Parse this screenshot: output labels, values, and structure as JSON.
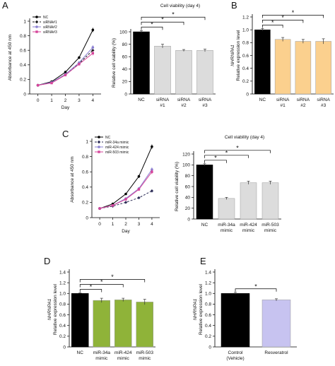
{
  "panels": [
    {
      "id": "A-line",
      "letter": "A",
      "type": "line",
      "xlabel": "Day",
      "ylabel": "Absorbance at 450 nm",
      "x": [
        0,
        1,
        2,
        3,
        4
      ],
      "xlim": [
        -0.6,
        4.6
      ],
      "ylim": [
        0,
        1.0
      ],
      "yticks": [
        0,
        0.2,
        0.4,
        0.6,
        0.8,
        1.0
      ],
      "ytick_labels": [
        "0",
        "0.2",
        "0.4",
        "0.6",
        "0.8",
        "1"
      ],
      "legend_position": "top-left",
      "series": [
        {
          "name": "NC",
          "color": "#000000",
          "dash": "",
          "marker": "circle",
          "values": [
            0.12,
            0.17,
            0.3,
            0.5,
            0.88
          ],
          "errors": [
            0.01,
            0.01,
            0.02,
            0.02,
            0.03
          ]
        },
        {
          "name": "siRNA#1",
          "color": "#1a1a1a",
          "dash": "3,2",
          "marker": "diamond",
          "values": [
            0.12,
            0.16,
            0.27,
            0.42,
            0.6
          ],
          "errors": [
            0.01,
            0.01,
            0.01,
            0.02,
            0.03
          ]
        },
        {
          "name": "siRNA#2",
          "color": "#8a7fd1",
          "dash": "",
          "marker": "circle",
          "values": [
            0.12,
            0.16,
            0.27,
            0.43,
            0.64
          ],
          "errors": [
            0.01,
            0.01,
            0.01,
            0.02,
            0.03
          ]
        },
        {
          "name": "siRNA#3",
          "color": "#d6449a",
          "dash": "",
          "marker": "square",
          "values": [
            0.12,
            0.15,
            0.26,
            0.41,
            0.56
          ],
          "errors": [
            0.01,
            0.01,
            0.01,
            0.02,
            0.03
          ]
        }
      ]
    },
    {
      "id": "A-bar",
      "letter": "",
      "type": "bar",
      "title": "Cell viability (day 4)",
      "ylabel": "Relative cell viability (%)",
      "ylim": [
        0,
        100
      ],
      "yticks": [
        0,
        20,
        40,
        60,
        80,
        100
      ],
      "ytick_labels": [
        "0",
        "20",
        "40",
        "60",
        "80",
        "100"
      ],
      "categories": [
        [
          "NC"
        ],
        [
          "siRNA",
          "#1"
        ],
        [
          "siRNA",
          "#2"
        ],
        [
          "siRNA",
          "#3"
        ]
      ],
      "values": [
        100,
        77,
        70,
        70
      ],
      "errors": [
        2,
        3,
        1.5,
        2
      ],
      "colors": [
        "#000000",
        "#dcdcdc",
        "#dcdcdc",
        "#dcdcdc"
      ],
      "brackets": [
        {
          "from": 0,
          "to": 1,
          "label": "*"
        },
        {
          "from": 0,
          "to": 2,
          "label": "*"
        },
        {
          "from": 0,
          "to": 3,
          "label": "*"
        }
      ]
    },
    {
      "id": "B-bar",
      "letter": "B",
      "type": "bar",
      "title": "",
      "ylabel": "Relative expression level",
      "ylabel_italic": "NHRNPA1",
      "ylim": [
        0,
        1.2
      ],
      "yticks": [
        0,
        0.2,
        0.4,
        0.6,
        0.8,
        1.0,
        1.2
      ],
      "ytick_labels": [
        "0",
        "0.2",
        "0.4",
        "0.6",
        "0.8",
        "1.0",
        "1.2"
      ],
      "categories": [
        [
          "NC"
        ],
        [
          "siRNA",
          "#1"
        ],
        [
          "siRNA",
          "#2"
        ],
        [
          "siRNA",
          "#3"
        ]
      ],
      "values": [
        1.0,
        0.85,
        0.82,
        0.82
      ],
      "errors": [
        0.02,
        0.03,
        0.03,
        0.04
      ],
      "colors": [
        "#000000",
        "#fbd08e",
        "#fbd08e",
        "#fbd08e"
      ],
      "brackets": [
        {
          "from": 0,
          "to": 1,
          "label": "*"
        },
        {
          "from": 0,
          "to": 2,
          "label": "*"
        },
        {
          "from": 0,
          "to": 3,
          "label": "*"
        }
      ]
    },
    {
      "id": "C-line",
      "letter": "C",
      "type": "line",
      "xlabel": "Day",
      "ylabel": "Absorbance at 450 nm",
      "x": [
        0,
        1,
        2,
        3,
        4
      ],
      "xlim": [
        -0.6,
        4.6
      ],
      "ylim": [
        0,
        1.0
      ],
      "yticks": [
        0,
        0.2,
        0.4,
        0.6,
        0.8,
        1.0
      ],
      "ytick_labels": [
        "0",
        "0.2",
        "0.4",
        "0.6",
        "0.8",
        "1"
      ],
      "legend_position": "top-left",
      "series": [
        {
          "name": "NC",
          "color": "#000000",
          "dash": "",
          "marker": "circle",
          "values": [
            0.12,
            0.18,
            0.31,
            0.54,
            0.93
          ],
          "errors": [
            0.01,
            0.01,
            0.01,
            0.02,
            0.03
          ]
        },
        {
          "name": "miR-34a mimic",
          "color": "#2a2a55",
          "dash": "3,2",
          "marker": "diamond",
          "values": [
            0.12,
            0.15,
            0.2,
            0.26,
            0.35
          ],
          "errors": [
            0.01,
            0.01,
            0.01,
            0.01,
            0.02
          ]
        },
        {
          "name": "miR-424 mimic",
          "color": "#8a7fd1",
          "dash": "",
          "marker": "circle",
          "values": [
            0.12,
            0.16,
            0.25,
            0.38,
            0.63
          ],
          "errors": [
            0.01,
            0.01,
            0.01,
            0.02,
            0.03
          ]
        },
        {
          "name": "miR-503 mimic",
          "color": "#d6449a",
          "dash": "",
          "marker": "square",
          "values": [
            0.12,
            0.16,
            0.24,
            0.37,
            0.6
          ],
          "errors": [
            0.01,
            0.01,
            0.01,
            0.02,
            0.03
          ]
        }
      ]
    },
    {
      "id": "C-bar",
      "letter": "",
      "type": "bar",
      "title": "Cell viability (day 4)",
      "ylabel": "Relative cell viability (%)",
      "ylim": [
        0,
        120
      ],
      "yticks": [
        0,
        20,
        40,
        60,
        80,
        100,
        120
      ],
      "ytick_labels": [
        "0",
        "20",
        "40",
        "60",
        "80",
        "100",
        "120"
      ],
      "categories": [
        [
          "NC"
        ],
        [
          "miR-34a",
          "mimic"
        ],
        [
          "miR-424",
          "mimic"
        ],
        [
          "miR-503",
          "mimic"
        ]
      ],
      "values": [
        100,
        38,
        67,
        67
      ],
      "errors": [
        2,
        2,
        3,
        3
      ],
      "colors": [
        "#000000",
        "#dcdcdc",
        "#dcdcdc",
        "#dcdcdc"
      ],
      "brackets": [
        {
          "from": 0,
          "to": 1,
          "label": "*"
        },
        {
          "from": 0,
          "to": 2,
          "label": "*"
        },
        {
          "from": 0,
          "to": 3,
          "label": "*"
        }
      ]
    },
    {
      "id": "D-bar",
      "letter": "D",
      "type": "bar",
      "title": "",
      "ylabel": "Relative expression level",
      "ylabel_italic": "NHRNPA1",
      "ylim": [
        0,
        1.4
      ],
      "yticks": [
        0,
        0.2,
        0.4,
        0.6,
        0.8,
        1.0,
        1.2,
        1.4
      ],
      "ytick_labels": [
        "0",
        "0.2",
        "0.4",
        "0.6",
        "0.8",
        "1.0",
        "1.2",
        "1.4"
      ],
      "categories": [
        [
          "NC"
        ],
        [
          "miR-34a",
          "mimic"
        ],
        [
          "miR-424",
          "mimic"
        ],
        [
          "miR-503",
          "mimic"
        ]
      ],
      "values": [
        1.0,
        0.87,
        0.88,
        0.84
      ],
      "errors": [
        0.01,
        0.04,
        0.03,
        0.05
      ],
      "colors": [
        "#000000",
        "#8fb339",
        "#8fb339",
        "#8fb339"
      ],
      "brackets": [
        {
          "from": 0,
          "to": 1,
          "label": "*"
        },
        {
          "from": 0,
          "to": 2,
          "label": "*"
        },
        {
          "from": 0,
          "to": 3,
          "label": "*"
        }
      ]
    },
    {
      "id": "E-bar",
      "letter": "E",
      "type": "bar",
      "title": "",
      "ylabel": "Relative expression level",
      "ylabel_italic": "NHRNPA1",
      "ylim": [
        0,
        1.4
      ],
      "yticks": [
        0,
        0.2,
        0.4,
        0.6,
        0.8,
        1.0,
        1.2,
        1.4
      ],
      "ytick_labels": [
        "0",
        "0.2",
        "0.4",
        "0.6",
        "0.8",
        "1.0",
        "1.2",
        "1.4"
      ],
      "categories": [
        [
          "Control",
          "(Vehicle)"
        ],
        [
          "Resveratrol"
        ]
      ],
      "values": [
        1.0,
        0.88
      ],
      "errors": [
        0.02,
        0.02
      ],
      "colors": [
        "#000000",
        "#c7c3f0"
      ],
      "brackets": [
        {
          "from": 0,
          "to": 1,
          "label": "*"
        }
      ]
    }
  ]
}
